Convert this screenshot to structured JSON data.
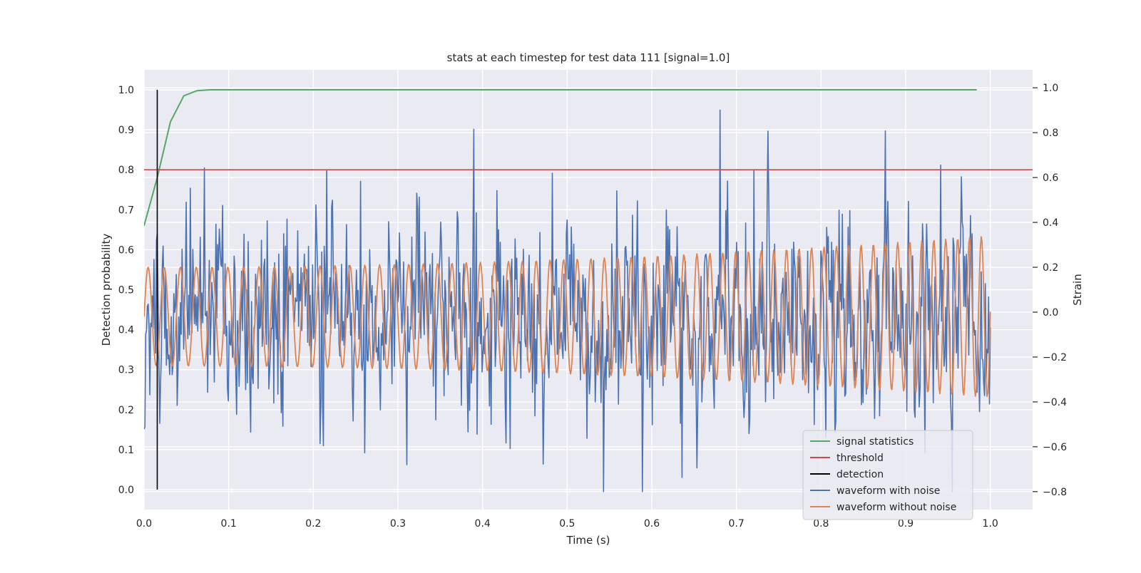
{
  "chart_data": {
    "type": "line",
    "title": "stats at each timestep for test data 111 [signal=1.0]",
    "xlabel": "Time (s)",
    "ylabel": "Detection probability",
    "y2label": "Strain",
    "xlim": [
      0.0,
      1.05
    ],
    "ylim": [
      -0.05,
      1.05
    ],
    "y2lim": [
      -0.88,
      1.08
    ],
    "xticks": [
      0.0,
      0.1,
      0.2,
      0.3,
      0.4,
      0.5,
      0.6,
      0.7,
      0.8,
      0.9,
      1.0
    ],
    "xtick_labels": [
      "0.0",
      "0.1",
      "0.2",
      "0.3",
      "0.4",
      "0.5",
      "0.6",
      "0.7",
      "0.8",
      "0.9",
      "1.0"
    ],
    "yticks": [
      0.0,
      0.1,
      0.2,
      0.3,
      0.4,
      0.5,
      0.6,
      0.7,
      0.8,
      0.9,
      1.0
    ],
    "ytick_labels": [
      "0.0",
      "0.1",
      "0.2",
      "0.3",
      "0.4",
      "0.5",
      "0.6",
      "0.7",
      "0.8",
      "0.9",
      "1.0"
    ],
    "y2ticks": [
      -0.8,
      -0.6,
      -0.4,
      -0.2,
      0.0,
      0.2,
      0.4,
      0.6,
      0.8,
      1.0
    ],
    "y2tick_labels": [
      "−0.8",
      "−0.6",
      "−0.4",
      "−0.2",
      "0.0",
      "0.2",
      "0.4",
      "0.6",
      "0.8",
      "1.0"
    ],
    "grid": true,
    "legend_position": "lower-right",
    "series": [
      {
        "name": "signal statistics",
        "color": "#55a868",
        "axis": "left",
        "x": [
          0.0,
          0.0156,
          0.0312,
          0.0469,
          0.0625,
          0.0781,
          0.25,
          0.5,
          0.75,
          0.984
        ],
        "values": [
          0.66,
          0.78,
          0.92,
          0.985,
          0.998,
          1.0,
          1.0,
          1.0,
          1.0,
          1.0
        ]
      },
      {
        "name": "threshold",
        "color": "#c44e52",
        "axis": "left",
        "x": [
          0.0,
          1.05
        ],
        "values": [
          0.8,
          0.8
        ]
      },
      {
        "name": "detection",
        "color": "#000000",
        "axis": "left",
        "x": [
          0.0156,
          0.0156
        ],
        "values": [
          0.0,
          1.0
        ]
      },
      {
        "name": "waveform with noise",
        "color": "#4c72b0",
        "axis": "right",
        "generated": "noisy",
        "x_range": [
          0.0,
          1.0
        ],
        "samples": 1024,
        "approx_range": [
          -0.8,
          1.0
        ]
      },
      {
        "name": "waveform without noise",
        "color": "#dd8452",
        "axis": "right",
        "generated": "clean",
        "x_range": [
          0.0,
          1.0
        ],
        "samples": 1024,
        "f_start_hz": 52,
        "f_end_hz": 72,
        "amp_start": 0.22,
        "amp_end": 0.36,
        "center": -0.02
      }
    ]
  },
  "colors": {
    "plot_background": "#eaeaf2",
    "grid": "#ffffff"
  }
}
